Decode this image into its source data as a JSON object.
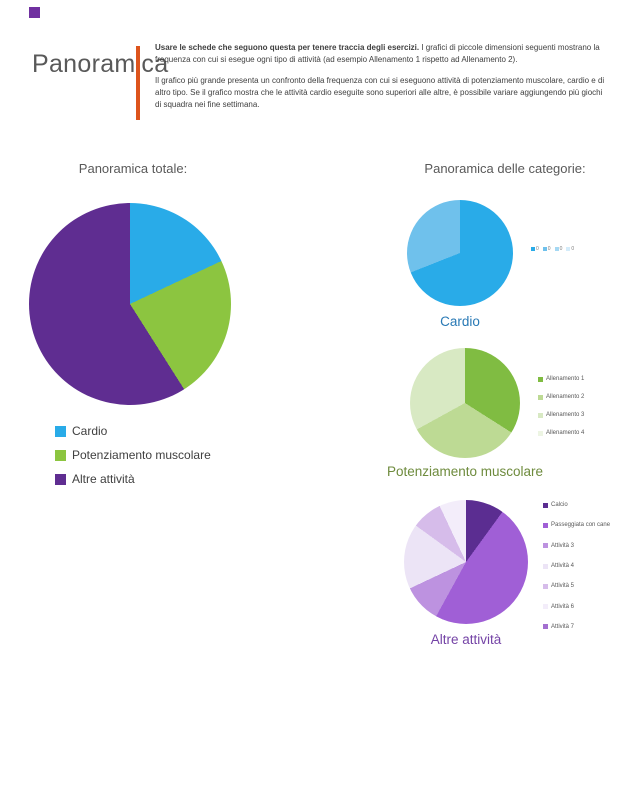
{
  "header": {
    "accent_square_color": "#7030a0",
    "title": "Panoramica",
    "bar_color": "#dd541c",
    "intro_bold": "Usare le schede che seguono questa per tenere traccia degli esercizi.",
    "intro_rest": "I grafici di piccole dimensioni seguenti mostrano la frequenza con cui si esegue ogni tipo di attività (ad esempio Allenamento 1 rispetto ad Allenamento 2).",
    "paragraph2": "Il grafico più grande presenta un confronto della frequenza con cui si eseguono attività di potenziamento muscolare, cardio e di altro tipo. Se il grafico mostra che le attività cardio eseguite sono superiori alle altre, è possibile variare aggiungendo più giochi di squadra nei fine settimana."
  },
  "sections": {
    "right_title": "Panoramica delle categorie:"
  },
  "chart_data": [
    {
      "type": "pie",
      "title": "Panoramica totale:",
      "labels": [
        "Cardio",
        "Potenziamento muscolare",
        "Altre attività"
      ],
      "values": [
        18,
        23,
        59
      ],
      "colors": [
        "#29abe8",
        "#8cc540",
        "#5f2d91"
      ],
      "legend_position": "bottom-left",
      "legend_text_color": "#404040"
    },
    {
      "type": "pie",
      "title": "Cardio",
      "title_color": "#2879b5",
      "labels": [
        "0",
        "0",
        "0",
        "0"
      ],
      "values": [
        69,
        31,
        0,
        0
      ],
      "colors": [
        "#29abe8",
        "#6fc1ec",
        "#a5d8f3",
        "#d4ecfa"
      ],
      "legend_position": "right"
    },
    {
      "type": "pie",
      "title": "Potenziamento muscolare",
      "title_color": "#6e8b3d",
      "labels": [
        "Allenamento 1",
        "Allenamento 2",
        "Allenamento 3",
        "Allenamento 4"
      ],
      "values": [
        34,
        33,
        33,
        0
      ],
      "colors": [
        "#80bc42",
        "#bdda94",
        "#d8e9c3",
        "#edf5e3"
      ],
      "legend_position": "right"
    },
    {
      "type": "pie",
      "title": "Altre attività",
      "title_color": "#7443a6",
      "labels": [
        "Calcio",
        "Passeggiata con cane",
        "Attività 3",
        "Attività 4",
        "Attività 5",
        "Attività 6",
        "Attività 7"
      ],
      "values": [
        10,
        48,
        10,
        17,
        8,
        7,
        0
      ],
      "colors": [
        "#5b2d91",
        "#a05fd6",
        "#bd92e0",
        "#ece4f6",
        "#d6bcea",
        "#f3edfa",
        "#a36fd0"
      ],
      "legend_position": "right"
    }
  ]
}
